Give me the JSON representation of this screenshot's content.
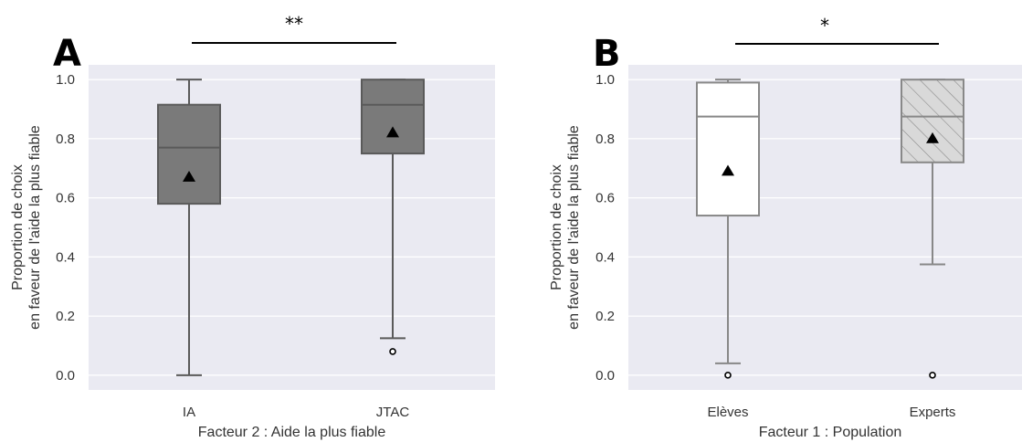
{
  "chart_data": [
    {
      "type": "box",
      "panel_label": "A",
      "xlabel": "Facteur 2 : Aide la plus fiable",
      "ylabel": [
        "Proportion de choix",
        "en faveur de l'aide la plus fiable"
      ],
      "ylim": [
        -0.05,
        1.05
      ],
      "yticks": [
        "0.0",
        "0.2",
        "0.4",
        "0.6",
        "0.8",
        "1.0"
      ],
      "grid": true,
      "categories": [
        "IA",
        "JTAC"
      ],
      "boxes": [
        {
          "name": "IA",
          "whisker_low": 0.0,
          "q1": 0.58,
          "median": 0.77,
          "q3": 0.915,
          "whisker_high": 1.0,
          "mean": 0.67,
          "outliers": [],
          "fill": "#7a7a7a",
          "hatch": false
        },
        {
          "name": "JTAC",
          "whisker_low": 0.125,
          "q1": 0.75,
          "median": 0.915,
          "q3": 1.0,
          "whisker_high": 1.0,
          "mean": 0.82,
          "outliers": [
            0.08
          ],
          "fill": "#7a7a7a",
          "hatch": false
        }
      ],
      "significance": "**"
    },
    {
      "type": "box",
      "panel_label": "B",
      "xlabel": "Facteur 1 : Population",
      "ylabel": [
        "Proportion de choix",
        "en faveur de l'aide la plus fiable"
      ],
      "ylim": [
        -0.05,
        1.05
      ],
      "yticks": [
        "0.0",
        "0.2",
        "0.4",
        "0.6",
        "0.8",
        "1.0"
      ],
      "grid": true,
      "categories": [
        "Elèves",
        "Experts"
      ],
      "boxes": [
        {
          "name": "Elèves",
          "whisker_low": 0.04,
          "q1": 0.54,
          "median": 0.875,
          "q3": 0.99,
          "whisker_high": 1.0,
          "mean": 0.69,
          "outliers": [
            0.0
          ],
          "fill": "#ffffff",
          "hatch": false
        },
        {
          "name": "Experts",
          "whisker_low": 0.375,
          "q1": 0.72,
          "median": 0.875,
          "q3": 1.0,
          "whisker_high": 1.0,
          "mean": 0.8,
          "outliers": [
            0.0
          ],
          "fill": "#d9d9d9",
          "hatch": true
        }
      ],
      "significance": "*"
    }
  ],
  "colors": {
    "plot_bg": "#eaeaf2",
    "grid": "#ffffff",
    "box_edge": "#5a5a5a",
    "box_edge_light": "#888888"
  }
}
